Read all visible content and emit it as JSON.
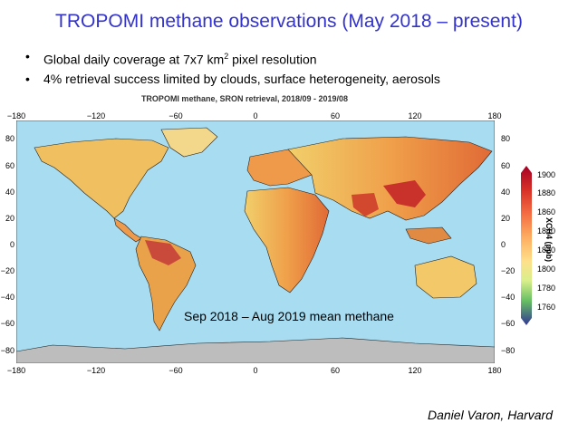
{
  "slide": {
    "title": "TROPOMI methane observations (May 2018 – present)",
    "bullet1_pre": "Global daily coverage at 7x7 km",
    "bullet1_sup": "2",
    "bullet1_post": " pixel resolution",
    "bullet2": "4% retrieval success limited by clouds, surface heterogeneity, aerosols",
    "caption": "Sep 2018 – Aug 2019 mean methane",
    "credit": "Daniel Varon, Harvard"
  },
  "map": {
    "title": "TROPOMI methane, SRON retrieval, 2018/09 - 2019/08",
    "lon_ticks": [
      "−180",
      "−120",
      "−60",
      "0",
      "60",
      "120",
      "180"
    ],
    "lat_ticks_left": [
      "80",
      "60",
      "40",
      "20",
      "0",
      "−20",
      "−40",
      "−60",
      "−80"
    ],
    "lat_ticks_right": [
      "80",
      "60",
      "40",
      "20",
      "0",
      "−20",
      "−40",
      "−60",
      "−80"
    ],
    "colorbar": {
      "label": "XCH4 (ppb)",
      "ticks": [
        "1900",
        "1880",
        "1860",
        "1840",
        "1820",
        "1800",
        "1780",
        "1760"
      ]
    },
    "colors": {
      "ocean": "#a8dcf0",
      "antarctica": "#bdbdbd",
      "land_low": "#f4d26a",
      "land_high": "#d83a2a"
    }
  }
}
